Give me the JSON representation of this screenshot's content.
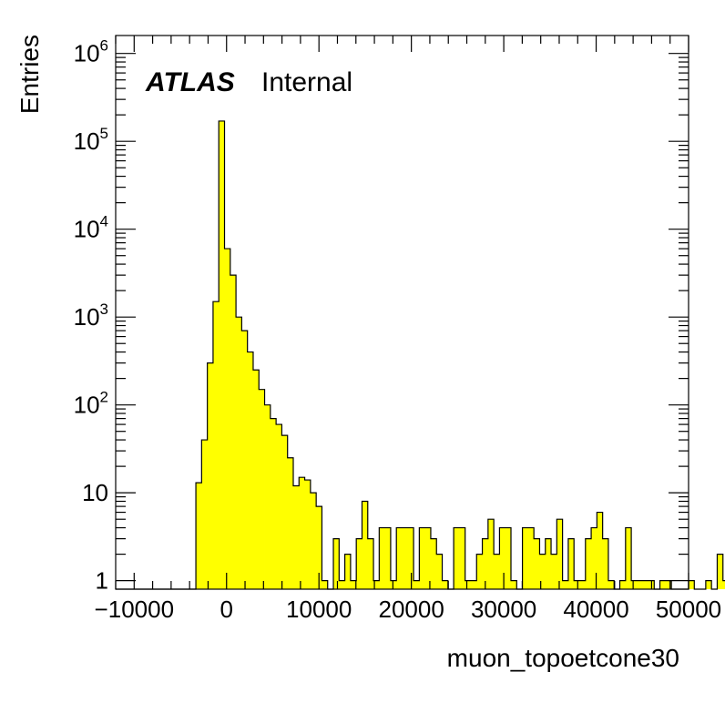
{
  "chart_data": {
    "type": "histogram",
    "xlabel": "muon_topoetcone30",
    "ylabel": "Entries",
    "xlim": [
      -12000,
      50000
    ],
    "ylim": [
      0.8,
      1600000
    ],
    "yscale": "log",
    "x_ticks": [
      {
        "value": -10000,
        "label": "−10000"
      },
      {
        "value": 0,
        "label": "0"
      },
      {
        "value": 10000,
        "label": "10000"
      },
      {
        "value": 20000,
        "label": "20000"
      },
      {
        "value": 30000,
        "label": "30000"
      },
      {
        "value": 40000,
        "label": "40000"
      },
      {
        "value": 50000,
        "label": "50000"
      }
    ],
    "y_ticks": [
      {
        "value": 1,
        "base": "1",
        "exp": ""
      },
      {
        "value": 10,
        "base": "10",
        "exp": ""
      },
      {
        "value": 100,
        "base": "10",
        "exp": "2"
      },
      {
        "value": 1000,
        "base": "10",
        "exp": "3"
      },
      {
        "value": 10000,
        "base": "10",
        "exp": "4"
      },
      {
        "value": 100000,
        "base": "10",
        "exp": "5"
      },
      {
        "value": 1000000,
        "base": "10",
        "exp": "6"
      }
    ],
    "bin_width": 620,
    "bin_start": -12000,
    "fill_color": "#ffff00",
    "line_color": "#000000",
    "values": [
      0,
      0,
      0,
      0,
      0,
      0,
      0,
      0,
      0,
      0,
      0,
      0,
      0,
      0,
      13,
      40,
      300,
      1500,
      170000,
      6000,
      3000,
      1000,
      700,
      400,
      250,
      150,
      100,
      70,
      60,
      45,
      25,
      12,
      15,
      14,
      10,
      7,
      1,
      0,
      3,
      1,
      2,
      1,
      3,
      8,
      3,
      1,
      4,
      4,
      1,
      4,
      4,
      4,
      1,
      4,
      4,
      3,
      2,
      1,
      0,
      4,
      4,
      1,
      1,
      2,
      3,
      5,
      2,
      4,
      4,
      1,
      0,
      4,
      4,
      3,
      2,
      3,
      2,
      5,
      1,
      3,
      1,
      1,
      3,
      4,
      6,
      3,
      1,
      0,
      1,
      4,
      1,
      1,
      1,
      1,
      0,
      1,
      1,
      0,
      0,
      0,
      1,
      0,
      0,
      1,
      0,
      2,
      1,
      1,
      1
    ],
    "grid": false,
    "legend": "none"
  },
  "labels": {
    "atlas": "ATLAS",
    "internal": "Internal",
    "xlabel": "muon_topoetcone30",
    "ylabel": "Entries"
  }
}
